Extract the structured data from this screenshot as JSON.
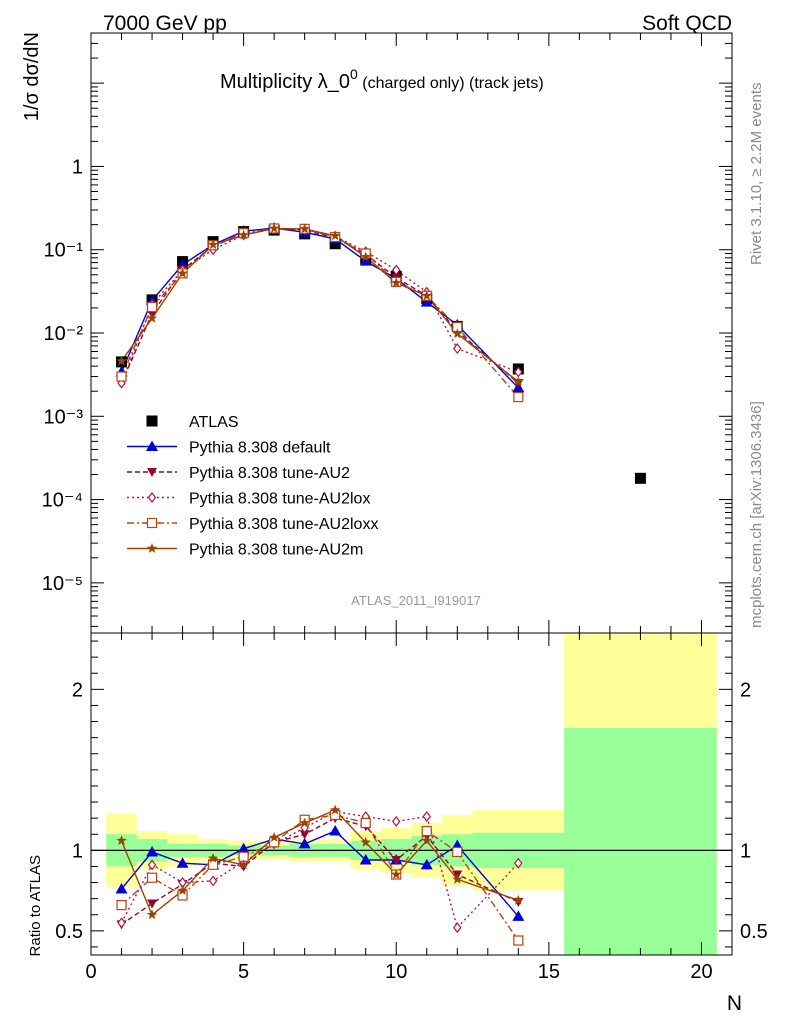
{
  "header": {
    "left": "7000 GeV pp",
    "right": "Soft QCD"
  },
  "side_labels": {
    "rivet": "Rivet 3.1.10, ≥ 2.2M events",
    "source": "mcplots.cern.ch [arXiv:1306.3436]"
  },
  "colors": {
    "data": "#000000",
    "default": "#0000dd",
    "au2": "#990033",
    "au2lox": "#bb1144",
    "au2loxx": "#bb4411",
    "au2m": "#994400",
    "band_inner": "#99ff99",
    "band_outer": "#ffff99"
  },
  "chart_data": [
    {
      "type": "scatter",
      "title": "Multiplicity λ_0⁰ (charged only) (track jets)",
      "title_main": "Multiplicity λ_0",
      "title_sup": "0",
      "title_rest": " (charged only) (track jets)",
      "ylabel": "1/σ dσ/dN",
      "analysis_label": "ATLAS_2011_I919017",
      "xlim": [
        0,
        21
      ],
      "ylim": [
        2.5e-06,
        40
      ],
      "yscale": "log",
      "ytick_labels": [
        "1",
        "10⁻¹",
        "10⁻²",
        "10⁻³",
        "10⁻⁴",
        "10⁻⁵"
      ],
      "legend_position": "lower-left",
      "series": [
        {
          "name": "ATLAS",
          "key": "data",
          "x": [
            1,
            2,
            3,
            4,
            5,
            6,
            7,
            8,
            9,
            10,
            11,
            12,
            14,
            18
          ],
          "y": [
            0.0045,
            0.025,
            0.072,
            0.125,
            0.165,
            0.172,
            0.155,
            0.118,
            0.078,
            0.048,
            0.026,
            0.012,
            0.0037,
            0.00018
          ]
        },
        {
          "name": "Pythia 8.308 default",
          "key": "default",
          "x": [
            1,
            2,
            3,
            4,
            5,
            6,
            7,
            8,
            9,
            10,
            11,
            12,
            14
          ],
          "y": [
            0.0034,
            0.0245,
            0.066,
            0.115,
            0.167,
            0.182,
            0.162,
            0.135,
            0.073,
            0.045,
            0.0235,
            0.0125,
            0.0022
          ]
        },
        {
          "name": "Pythia 8.308 tune-AU2",
          "key": "au2",
          "x": [
            1,
            2,
            3,
            4,
            5,
            6,
            7,
            8,
            9,
            10,
            11,
            12,
            14
          ],
          "y": [
            0.0025,
            0.017,
            0.057,
            0.112,
            0.15,
            0.18,
            0.17,
            0.14,
            0.088,
            0.046,
            0.028,
            0.0105,
            0.0025
          ]
        },
        {
          "name": "Pythia 8.308 tune-AU2lox",
          "key": "au2lox",
          "x": [
            1,
            2,
            3,
            4,
            5,
            6,
            7,
            8,
            9,
            10,
            11,
            12,
            14
          ],
          "y": [
            0.0025,
            0.022,
            0.057,
            0.1,
            0.15,
            0.18,
            0.175,
            0.145,
            0.095,
            0.057,
            0.031,
            0.0065,
            0.0034
          ]
        },
        {
          "name": "Pythia 8.308 tune-AU2loxx",
          "key": "au2loxx",
          "x": [
            1,
            2,
            3,
            4,
            5,
            6,
            7,
            8,
            9,
            10,
            11,
            12,
            14
          ],
          "y": [
            0.003,
            0.0205,
            0.052,
            0.113,
            0.158,
            0.18,
            0.178,
            0.142,
            0.09,
            0.041,
            0.028,
            0.0118,
            0.0017
          ]
        },
        {
          "name": "Pythia 8.308 tune-AU2m",
          "key": "au2m",
          "x": [
            1,
            2,
            3,
            4,
            5,
            6,
            7,
            8,
            9,
            10,
            11,
            12,
            14
          ],
          "y": [
            0.0046,
            0.015,
            0.052,
            0.115,
            0.15,
            0.18,
            0.178,
            0.147,
            0.082,
            0.04,
            0.028,
            0.0098,
            0.0026
          ]
        }
      ]
    },
    {
      "type": "line",
      "ylabel": "Ratio to ATLAS",
      "xlabel": "N",
      "xlim": [
        0,
        21
      ],
      "ylim": [
        0.35,
        2.35
      ],
      "xtick_labels": [
        "0",
        "5",
        "10",
        "15",
        "20"
      ],
      "ytick_labels": [
        "0.5",
        "1",
        "2"
      ],
      "bands": [
        {
          "x0": 0.5,
          "x1": 1.5,
          "inner": [
            0.9,
            1.1
          ],
          "outer": [
            0.77,
            1.23
          ]
        },
        {
          "x0": 1.5,
          "x1": 2.5,
          "inner": [
            0.93,
            1.07
          ],
          "outer": [
            0.88,
            1.12
          ]
        },
        {
          "x0": 2.5,
          "x1": 3.5,
          "inner": [
            0.96,
            1.04
          ],
          "outer": [
            0.9,
            1.1
          ]
        },
        {
          "x0": 3.5,
          "x1": 4.5,
          "inner": [
            0.96,
            1.04
          ],
          "outer": [
            0.93,
            1.07
          ]
        },
        {
          "x0": 4.5,
          "x1": 6.5,
          "inner": [
            0.97,
            1.03
          ],
          "outer": [
            0.94,
            1.06
          ]
        },
        {
          "x0": 6.5,
          "x1": 8.5,
          "inner": [
            0.96,
            1.04
          ],
          "outer": [
            0.93,
            1.07
          ]
        },
        {
          "x0": 8.5,
          "x1": 9.5,
          "inner": [
            0.94,
            1.06
          ],
          "outer": [
            0.88,
            1.12
          ]
        },
        {
          "x0": 9.5,
          "x1": 10.5,
          "inner": [
            0.93,
            1.07
          ],
          "outer": [
            0.86,
            1.14
          ]
        },
        {
          "x0": 10.5,
          "x1": 11.5,
          "inner": [
            0.91,
            1.09
          ],
          "outer": [
            0.83,
            1.17
          ]
        },
        {
          "x0": 11.5,
          "x1": 12.5,
          "inner": [
            0.9,
            1.1
          ],
          "outer": [
            0.78,
            1.22
          ]
        },
        {
          "x0": 12.5,
          "x1": 15.5,
          "inner": [
            0.89,
            1.11
          ],
          "outer": [
            0.75,
            1.25
          ]
        },
        {
          "x0": 15.5,
          "x1": 20.5,
          "inner": [
            0.35,
            1.76
          ],
          "outer": [
            0.35,
            2.35
          ]
        }
      ],
      "series": [
        {
          "name": "Pythia 8.308 default",
          "key": "default",
          "x": [
            1,
            2,
            3,
            4,
            5,
            6,
            7,
            8,
            9,
            10,
            11,
            12,
            14
          ],
          "y": [
            0.76,
            0.99,
            0.92,
            0.91,
            1.01,
            1.07,
            1.04,
            1.12,
            0.94,
            0.94,
            0.91,
            1.03,
            0.59
          ]
        },
        {
          "name": "Pythia 8.308 tune-AU2",
          "key": "au2",
          "x": [
            1,
            2,
            3,
            4,
            5,
            6,
            7,
            8,
            9,
            10,
            11,
            12,
            14
          ],
          "y": [
            0.54,
            0.67,
            0.79,
            0.92,
            0.9,
            1.05,
            1.1,
            1.2,
            1.15,
            0.94,
            1.09,
            0.85,
            0.68
          ]
        },
        {
          "name": "Pythia 8.308 tune-AU2lox",
          "key": "au2lox",
          "x": [
            1,
            2,
            3,
            4,
            5,
            6,
            7,
            8,
            9,
            10,
            11,
            12,
            14
          ],
          "y": [
            0.55,
            0.91,
            0.8,
            0.81,
            0.93,
            1.04,
            1.14,
            1.24,
            1.21,
            1.18,
            1.21,
            0.52,
            0.92
          ]
        },
        {
          "name": "Pythia 8.308 tune-AU2loxx",
          "key": "au2loxx",
          "x": [
            1,
            2,
            3,
            4,
            5,
            6,
            7,
            8,
            9,
            10,
            11,
            12,
            14
          ],
          "y": [
            0.66,
            0.83,
            0.72,
            0.91,
            0.96,
            1.05,
            1.19,
            1.22,
            1.17,
            0.85,
            1.12,
            0.99,
            0.44
          ]
        },
        {
          "name": "Pythia 8.308 tune-AU2m",
          "key": "au2m",
          "x": [
            1,
            2,
            3,
            4,
            5,
            6,
            7,
            8,
            9,
            10,
            11,
            12,
            14
          ],
          "y": [
            1.06,
            0.6,
            0.75,
            0.95,
            0.91,
            1.08,
            1.17,
            1.25,
            1.05,
            0.85,
            1.06,
            0.82,
            0.69
          ]
        }
      ]
    }
  ]
}
